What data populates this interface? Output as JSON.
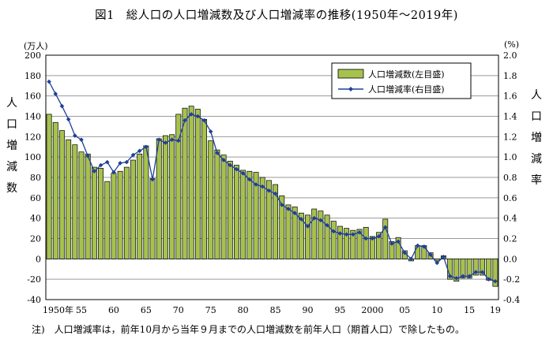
{
  "title": "図1　総人口の人口増減数及び人口増減率の推移(1950年～2019年)",
  "left_unit": "(万人)",
  "right_unit": "(%)",
  "left_axis_title": "人口増減数",
  "right_axis_title": "人口増減率",
  "note": "注)　人口増減率は，前年10月から当年９月までの人口増減数を前年人口（期首人口）で除したもの。",
  "colors": {
    "bar_fill": "#a6c24e",
    "bar_stroke": "#000000",
    "line": "#1f3f99",
    "grid": "#9a9a9a"
  },
  "chart_data": {
    "type": "bar+line",
    "title": "図1　総人口の人口増減数及び人口増減率の推移(1950年～2019年)",
    "years": [
      1950,
      1951,
      1952,
      1953,
      1954,
      1955,
      1956,
      1957,
      1958,
      1959,
      1960,
      1961,
      1962,
      1963,
      1964,
      1965,
      1966,
      1967,
      1968,
      1969,
      1970,
      1971,
      1972,
      1973,
      1974,
      1975,
      1976,
      1977,
      1978,
      1979,
      1980,
      1981,
      1982,
      1983,
      1984,
      1985,
      1986,
      1987,
      1988,
      1989,
      1990,
      1991,
      1992,
      1993,
      1994,
      1995,
      1996,
      1997,
      1998,
      1999,
      2000,
      2001,
      2002,
      2003,
      2004,
      2005,
      2006,
      2007,
      2008,
      2009,
      2010,
      2011,
      2012,
      2013,
      2014,
      2015,
      2016,
      2017,
      2018,
      2019
    ],
    "x_tick_labels": [
      "1950年",
      "55",
      "60",
      "65",
      "70",
      "75",
      "80",
      "85",
      "90",
      "95",
      "2000",
      "05",
      "10",
      "15",
      "19"
    ],
    "x_tick_years": [
      1950,
      1955,
      1960,
      1965,
      1970,
      1975,
      1980,
      1985,
      1990,
      1995,
      2000,
      2005,
      2010,
      2015,
      2019
    ],
    "y_left_ticks": [
      200,
      180,
      160,
      140,
      120,
      100,
      80,
      60,
      40,
      20,
      0,
      -20,
      -40
    ],
    "y_right_ticks": [
      "2.0",
      "1.8",
      "1.6",
      "1.4",
      "1.2",
      "1.0",
      "0.8",
      "0.6",
      "0.4",
      "0.2",
      "0.0",
      "-0.2",
      "-0.4"
    ],
    "y_left_range": [
      -40,
      200
    ],
    "y_right_range": [
      -0.4,
      2.0
    ],
    "grid": true,
    "legend_position": "top-right",
    "series": [
      {
        "name": "人口増減数(左目盛)",
        "type": "bar",
        "axis": "left",
        "values": [
          142,
          134,
          126,
          117,
          112,
          105,
          103,
          90,
          89,
          76,
          84,
          86,
          90,
          97,
          103,
          111,
          79,
          118,
          121,
          122,
          142,
          148,
          150,
          147,
          137,
          116,
          107,
          102,
          96,
          92,
          87,
          86,
          85,
          80,
          77,
          73,
          62,
          53,
          51,
          45,
          43,
          49,
          47,
          43,
          37,
          32,
          30,
          28,
          29,
          31,
          22,
          26,
          39,
          17,
          21,
          8,
          -2,
          13,
          13,
          6,
          -2,
          3,
          -20,
          -22,
          -19,
          -19,
          -16,
          -16,
          -21,
          -27
        ]
      },
      {
        "name": "人口増減率(右目盛)",
        "type": "line",
        "axis": "right",
        "values": [
          1.74,
          1.62,
          1.5,
          1.37,
          1.21,
          1.17,
          1.01,
          0.86,
          0.92,
          0.95,
          0.85,
          0.94,
          0.95,
          1.02,
          1.06,
          1.1,
          0.78,
          1.17,
          1.14,
          1.17,
          1.16,
          1.36,
          1.42,
          1.4,
          1.36,
          1.25,
          1.04,
          0.97,
          0.92,
          0.88,
          0.84,
          0.78,
          0.73,
          0.71,
          0.67,
          0.64,
          0.53,
          0.49,
          0.45,
          0.39,
          0.32,
          0.4,
          0.38,
          0.33,
          0.27,
          0.25,
          0.24,
          0.24,
          0.26,
          0.2,
          0.2,
          0.22,
          0.31,
          0.15,
          0.17,
          0.06,
          0.0,
          0.13,
          0.12,
          0.04,
          -0.04,
          0.02,
          -0.17,
          -0.19,
          -0.17,
          -0.17,
          -0.13,
          -0.13,
          -0.2,
          -0.22
        ]
      }
    ]
  }
}
